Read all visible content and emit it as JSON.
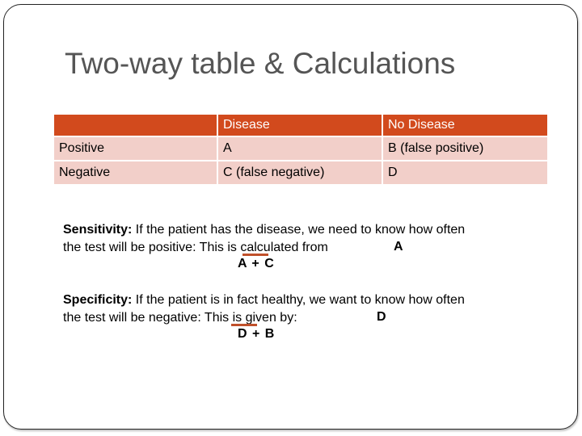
{
  "title": "Two-way table & Calculations",
  "table": {
    "headers": [
      "",
      "Disease",
      "No Disease"
    ],
    "rows": [
      [
        "Positive",
        "A",
        "B (false positive)"
      ],
      [
        "Negative",
        "C (false negative)",
        "D"
      ]
    ]
  },
  "sensitivity": {
    "term": "Sensitivity:",
    "line1": " If the patient has the disease, we need to know how often",
    "line2": "the test will be positive: This is calculated from",
    "numerator": "A",
    "denominator": "A + C"
  },
  "specificity": {
    "term": "Specificity:",
    "line1": " If the patient is in fact healthy, we want to know how often",
    "line2": "the test will be negative: This is given by:",
    "numerator": "D",
    "denominator": "D + B"
  },
  "colors": {
    "header_fill": "#d24a1d",
    "row_fill": "#f2cfc9",
    "title_color": "#555555",
    "fraction_bar": "#c0502a"
  }
}
